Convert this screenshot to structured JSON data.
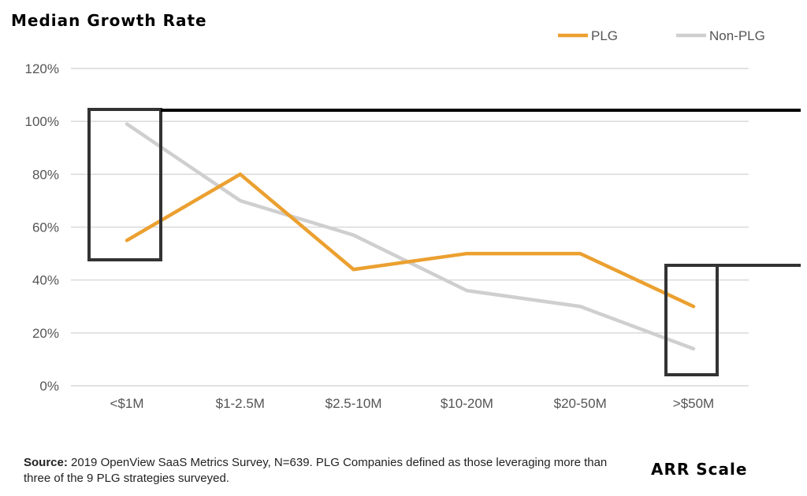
{
  "chart_data": {
    "type": "line",
    "title": "Median Growth Rate",
    "xlabel": "ARR Scale",
    "ylabel": "",
    "categories": [
      "<$1M",
      "$1-2.5M",
      "$2.5-10M",
      "$10-20M",
      "$20-50M",
      ">$50M"
    ],
    "yticks": [
      "0%",
      "20%",
      "40%",
      "60%",
      "80%",
      "100%",
      "120%"
    ],
    "ylim": [
      0,
      120
    ],
    "grid": true,
    "legend_position": "top-right",
    "series": [
      {
        "name": "PLG",
        "color": "#EBA030",
        "values": [
          55,
          80,
          44,
          50,
          50,
          30
        ]
      },
      {
        "name": "Non-PLG",
        "color": "#CFCFCF",
        "values": [
          99,
          70,
          57,
          36,
          30,
          14
        ]
      }
    ],
    "annotations": {
      "highlight_categories": [
        "<$1M",
        ">$50M"
      ],
      "color": "#333333"
    }
  },
  "footer": {
    "source_label": "Source:",
    "source_text": " 2019 OpenView SaaS Metrics Survey, N=639. PLG Companies defined as those leveraging more than three of the 9 PLG strategies surveyed."
  }
}
